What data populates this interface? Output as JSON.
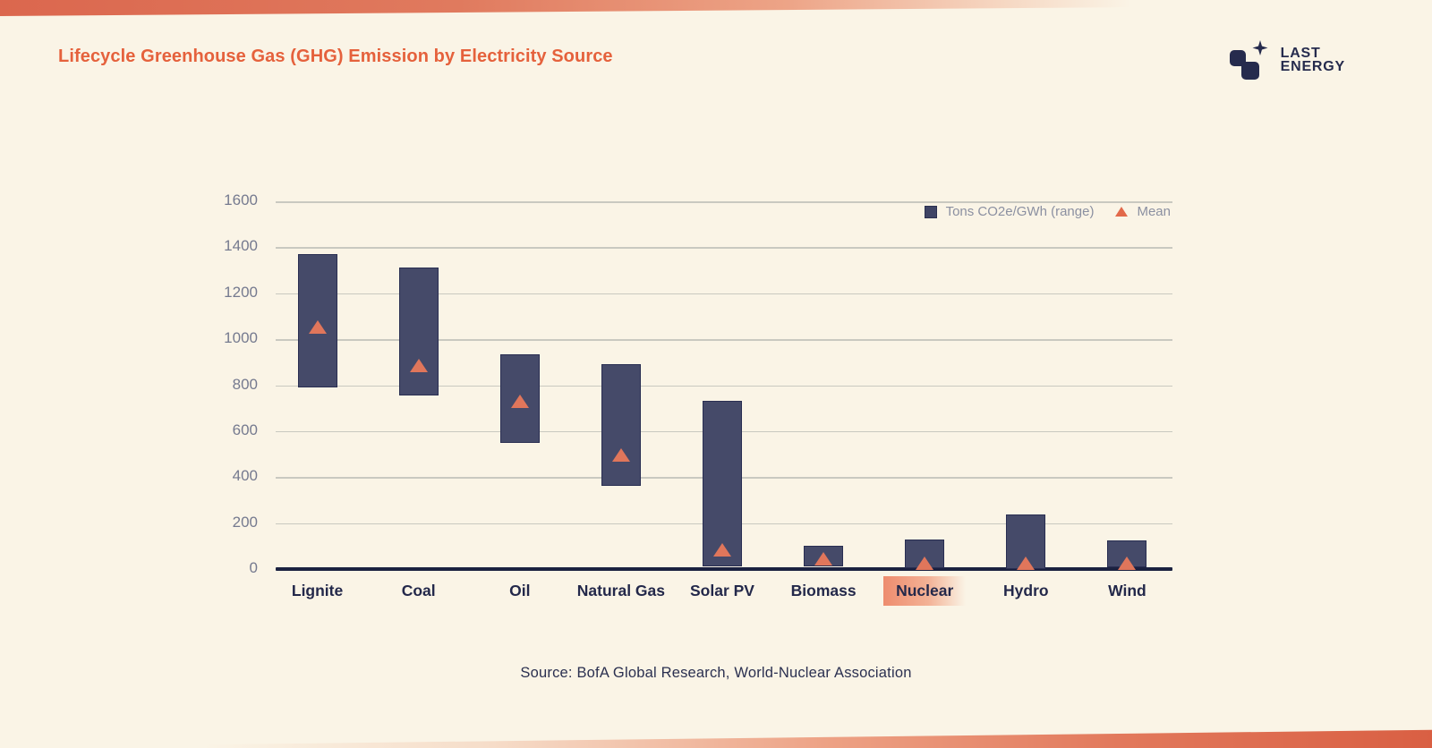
{
  "page": {
    "background_color": "#faf4e6",
    "accent_color": "#e5613c",
    "navy_color": "#23284a"
  },
  "header": {
    "title": "Lifecycle Greenhouse Gas (GHG) Emission by Electricity Source"
  },
  "logo": {
    "line1": "LAST",
    "line2": "ENERGY",
    "color": "#262b4d"
  },
  "legend": {
    "range_label": "Tons CO2e/GWh (range)",
    "mean_label": "Mean"
  },
  "footer": {
    "source": "Source: BofA Global Research, World-Nuclear Association"
  },
  "chart_data": {
    "type": "bar",
    "subtype": "floating-range-bars-with-mean-markers",
    "title": "Lifecycle Greenhouse Gas (GHG) Emission by Electricity Source",
    "xlabel": "",
    "ylabel": "Tons CO2e/GWh",
    "categories": [
      "Lignite",
      "Coal",
      "Oil",
      "Natural Gas",
      "Solar PV",
      "Biomass",
      "Nuclear",
      "Hydro",
      "Wind"
    ],
    "series": [
      {
        "name": "Tons CO2e/GWh (range)",
        "type": "range-bar",
        "color": "#454a69",
        "min": [
          790,
          756,
          547,
          362,
          13,
          10,
          2,
          1,
          6
        ],
        "max": [
          1372,
          1310,
          935,
          891,
          731,
          101,
          130,
          237,
          124
        ]
      },
      {
        "name": "Mean",
        "type": "triangle-marker",
        "color": "#e0765b",
        "values": [
          1054,
          888,
          733,
          499,
          85,
          45,
          29,
          26,
          26
        ]
      }
    ],
    "ylim": [
      0,
      1600
    ],
    "yticks": [
      0,
      200,
      400,
      600,
      800,
      1000,
      1200,
      1400,
      1600
    ],
    "grid": true,
    "gridline_color": "#c9c9c0",
    "axis_color": "#1b2140",
    "legend_position": "top-right",
    "highlighted_category": "Nuclear",
    "highlight_color": "#ee8c6e"
  }
}
